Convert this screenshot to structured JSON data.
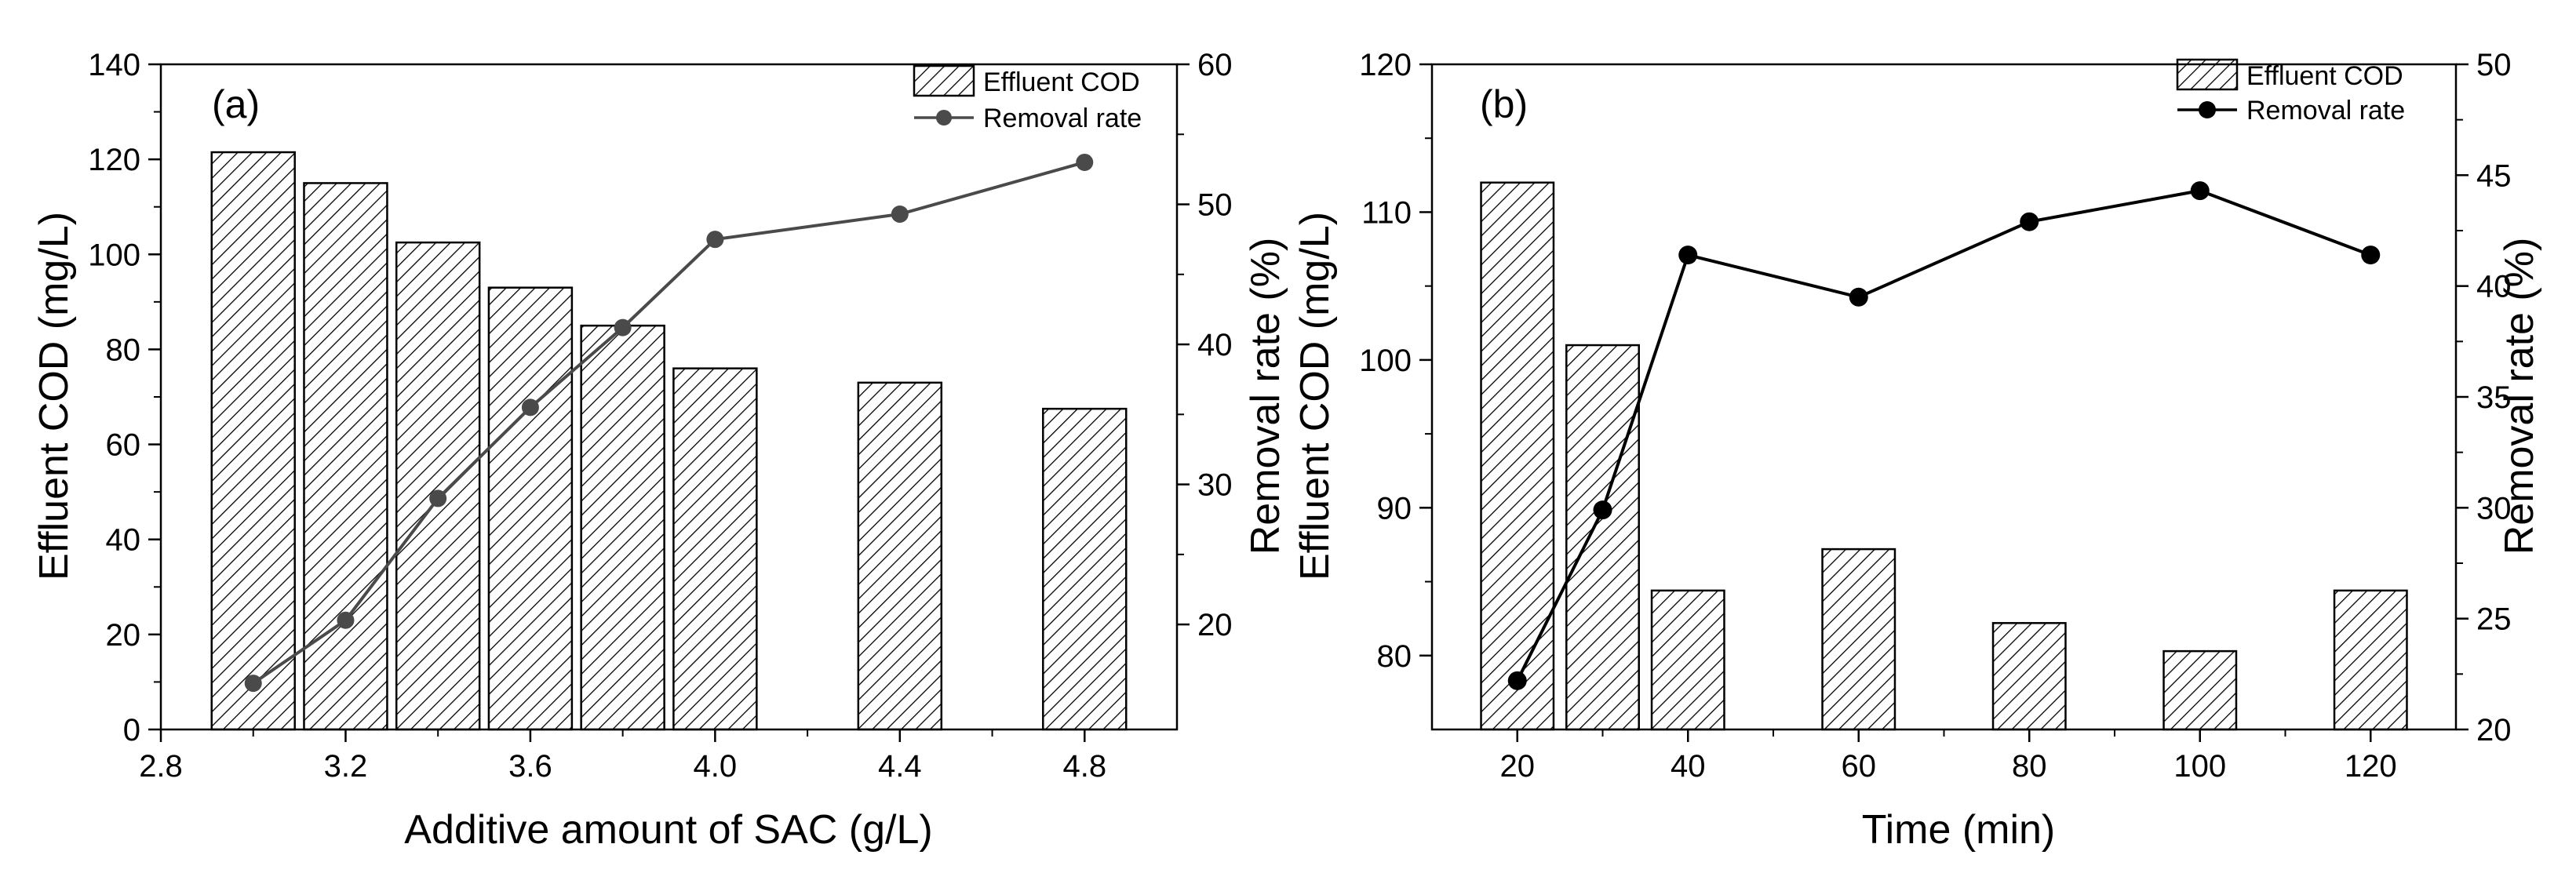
{
  "chart_data": [
    {
      "id": "a",
      "type": "bar",
      "panel_label": "(a)",
      "xlabel": "Additive amount of SAC (g/L)",
      "ylabel": "Effluent COD (mg/L)",
      "y2label": "Removal rate (%)",
      "xlim": [
        2.8,
        5.0
      ],
      "ylim": [
        0,
        140
      ],
      "y2lim": [
        12.5,
        60
      ],
      "xticks": [
        2.8,
        3.2,
        3.6,
        4.0,
        4.4,
        4.8
      ],
      "xtick_labels": [
        "2.8",
        "3.2",
        "3.6",
        "4.0",
        "4.4",
        "4.8"
      ],
      "yticks": [
        0,
        20,
        40,
        60,
        80,
        100,
        120,
        140
      ],
      "ytick_labels": [
        "0",
        "20",
        "40",
        "60",
        "80",
        "100",
        "120",
        "140"
      ],
      "y2ticks": [
        20,
        30,
        40,
        50,
        60
      ],
      "y2tick_labels": [
        "20",
        "30",
        "40",
        "50",
        "60"
      ],
      "bar_width": 0.18,
      "legend_position": "top-right",
      "colors": {
        "line": "#4a4a4a",
        "bar_edge": "#000000",
        "hatch": "#000000"
      },
      "series": [
        {
          "name": "Effluent COD",
          "kind": "bar",
          "axis": "left",
          "x": [
            3.0,
            3.2,
            3.4,
            3.6,
            3.8,
            4.0,
            4.4,
            4.8
          ],
          "values": [
            121.5,
            115,
            102.5,
            93,
            85,
            76,
            73,
            67.5
          ]
        },
        {
          "name": "Removal rate",
          "kind": "line",
          "axis": "right",
          "x": [
            3.0,
            3.2,
            3.4,
            3.6,
            3.8,
            4.0,
            4.4,
            4.8
          ],
          "values": [
            15.8,
            20.3,
            29.0,
            35.5,
            41.2,
            47.5,
            49.3,
            53.0
          ]
        }
      ]
    },
    {
      "id": "b",
      "type": "bar",
      "panel_label": "(b)",
      "xlabel": "Time (min)",
      "ylabel": "Effluent COD (mg/L)",
      "y2label": "Removal rate (%)",
      "xlim": [
        10,
        130
      ],
      "ylim": [
        75,
        120
      ],
      "y2lim": [
        20,
        50
      ],
      "xticks": [
        20,
        40,
        60,
        80,
        100,
        120
      ],
      "xtick_labels": [
        "20",
        "40",
        "60",
        "80",
        "100",
        "120"
      ],
      "yticks": [
        80,
        90,
        100,
        110,
        120
      ],
      "ytick_labels": [
        "80",
        "90",
        "100",
        "110",
        "120"
      ],
      "y2ticks": [
        20,
        25,
        30,
        35,
        40,
        45,
        50
      ],
      "y2tick_labels": [
        "20",
        "25",
        "30",
        "35",
        "40",
        "45",
        "50"
      ],
      "bar_width": 8.5,
      "legend_position": "top-right",
      "colors": {
        "line": "#000000",
        "bar_edge": "#000000",
        "hatch": "#000000"
      },
      "series": [
        {
          "name": "Effluent COD",
          "kind": "bar",
          "axis": "left",
          "x": [
            20,
            30,
            40,
            60,
            80,
            100,
            120
          ],
          "values": [
            112,
            101,
            84.4,
            87.2,
            82.2,
            80.3,
            84.4
          ]
        },
        {
          "name": "Removal rate",
          "kind": "line",
          "axis": "right",
          "x": [
            20,
            30,
            40,
            60,
            80,
            100,
            120
          ],
          "values": [
            22.2,
            29.9,
            41.4,
            39.5,
            42.9,
            44.3,
            41.4
          ]
        }
      ]
    }
  ]
}
